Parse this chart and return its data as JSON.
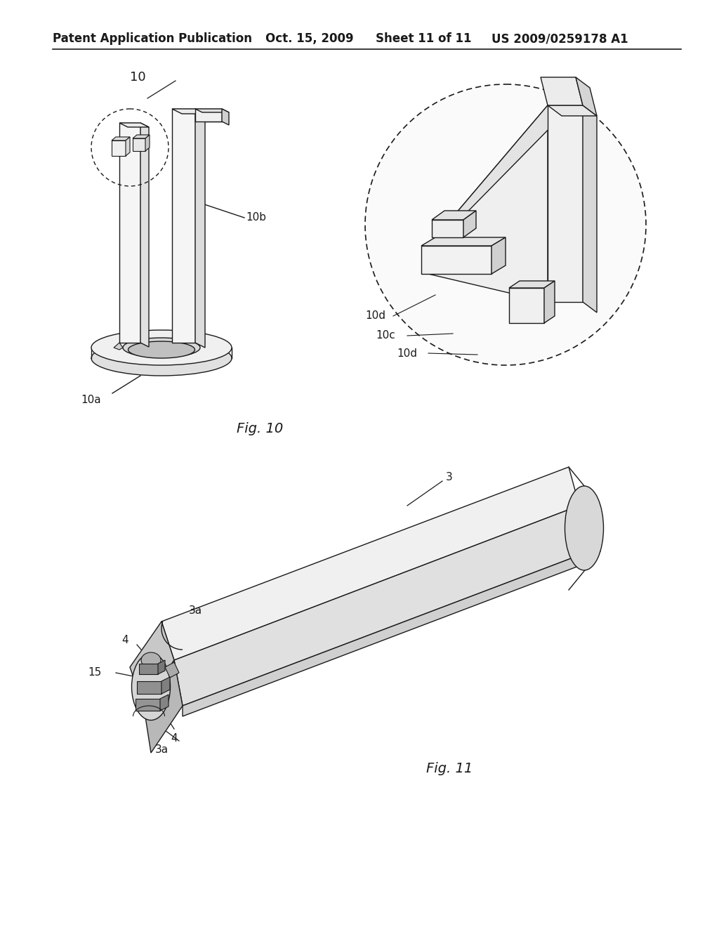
{
  "background_color": "#ffffff",
  "header_text": "Patent Application Publication",
  "header_date": "Oct. 15, 2009",
  "header_sheet": "Sheet 11 of 11",
  "header_patent": "US 2009/0259178 A1",
  "fig10_label": "Fig. 10",
  "fig11_label": "Fig. 11",
  "black": "#1a1a1a",
  "gray_light": "#e8e8e8",
  "gray_mid": "#d0d0d0",
  "gray_dark": "#b0b0b0"
}
